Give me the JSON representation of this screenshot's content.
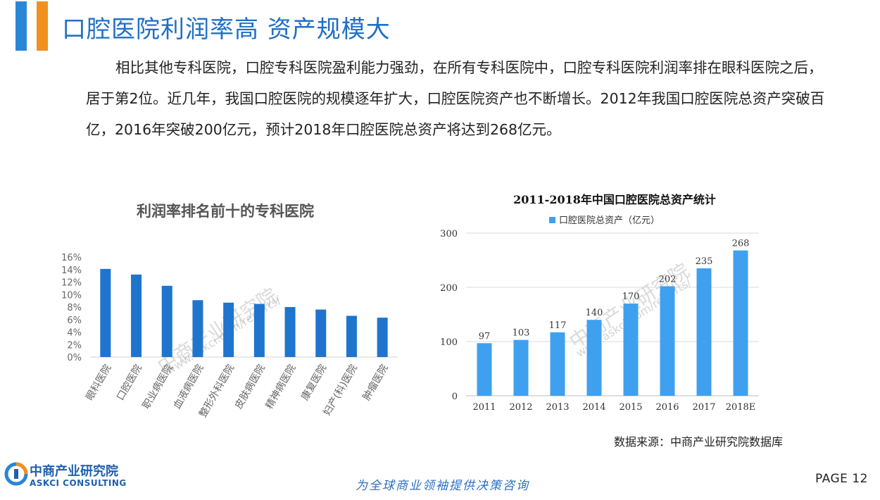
{
  "header": {
    "title": "口腔医院利润率高 资产规模大",
    "accent_colors": [
      "#2a86d6",
      "#f0901e"
    ]
  },
  "intro_text": "相比其他专科医院，口腔专科医院盈利能力强劲，在所有专科医院中，口腔专科医院利润率排在眼科医院之后，居于第2位。近几年，我国口腔医院的规模逐年扩大，口腔医院资产也不断增长。2012年我国口腔医院总资产突破百亿，2016年突破200亿元，预计2018年口腔医院总资产将达到268亿元。",
  "chart_data": [
    {
      "type": "bar",
      "title": "利润率排名前十的专科医院",
      "categories": [
        "眼科医院",
        "口腔医院",
        "职业病医院",
        "血液病医院",
        "整形外科医院",
        "皮肤病医院",
        "精神病医院",
        "康复医院",
        "妇产(科)医院",
        "肿瘤医院"
      ],
      "values": [
        14.1,
        13.2,
        11.4,
        9.1,
        8.7,
        8.5,
        8.0,
        7.6,
        6.6,
        6.3
      ],
      "unit": "%",
      "ylim": [
        0,
        16
      ],
      "yticks": [
        "0%",
        "2%",
        "4%",
        "6%",
        "8%",
        "10%",
        "12%",
        "14%",
        "16%"
      ],
      "ytick_values": [
        0,
        2,
        4,
        6,
        8,
        10,
        12,
        14,
        16
      ],
      "grid": false,
      "color": "#1f75cd"
    },
    {
      "type": "bar",
      "title": "2011-2018年中国口腔医院总资产统计",
      "categories": [
        "2011",
        "2012",
        "2013",
        "2014",
        "2015",
        "2016",
        "2017",
        "2018E"
      ],
      "series": [
        {
          "name": "口腔医院总资产（亿元）",
          "values": [
            97,
            103,
            117,
            140,
            170,
            202,
            235,
            268
          ]
        }
      ],
      "ylim": [
        0,
        300
      ],
      "yticks": [
        "0",
        "100",
        "200",
        "300"
      ],
      "ytick_values": [
        0,
        100,
        200,
        300
      ],
      "grid": true,
      "legend": "top",
      "color": "#3fa0ef"
    }
  ],
  "source": "数据来源：中商产业研究院数据库",
  "footer": {
    "logo_cn": "中商产业研究院",
    "logo_en": "ASKCI CONSULTING",
    "slogan": "为全球商业领袖提供决策咨询",
    "page": "PAGE  12"
  },
  "watermark": {
    "cn": "中商产业研究院",
    "url": "www.askci.com/reports/"
  }
}
